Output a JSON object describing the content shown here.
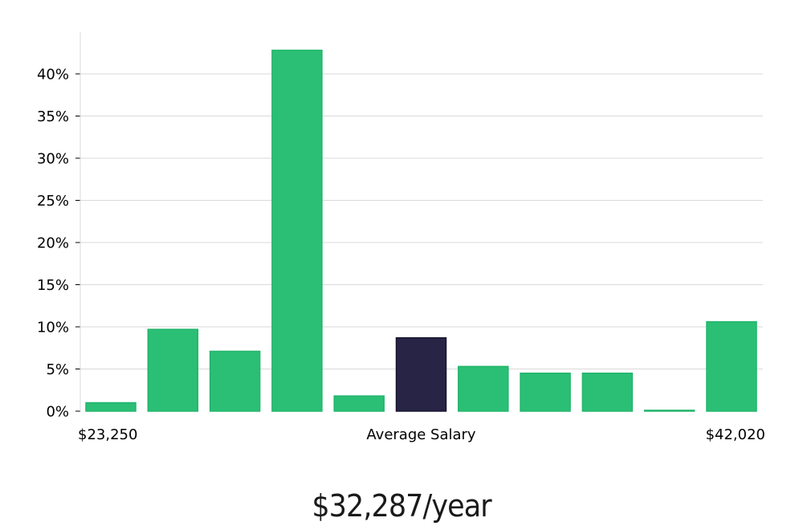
{
  "chart_data": {
    "type": "bar",
    "title": "",
    "xlabel": "",
    "ylabel": "",
    "x_tick_labels": [
      "$23,250",
      "Average Salary",
      "$42,020"
    ],
    "y_tick_labels": [
      "0%",
      "5%",
      "10%",
      "15%",
      "20%",
      "25%",
      "30%",
      "35%",
      "40%"
    ],
    "ylim": [
      0,
      45
    ],
    "grid": true,
    "legend": "none",
    "series": [
      {
        "values": [
          1.0,
          9.7,
          7.1,
          42.8,
          1.8,
          8.7,
          5.3,
          4.5,
          4.5,
          0.1,
          10.6
        ],
        "highlight_index": 5
      }
    ],
    "colors": {
      "bar": "#2bbf76",
      "bar_edge": "#22b56b",
      "highlight": "#282446",
      "highlight_edge": "#181530",
      "grid": "#d9d9d9",
      "axis": "#d9d9d9",
      "text": "#000000"
    }
  },
  "salary_label": "$32,287/year"
}
